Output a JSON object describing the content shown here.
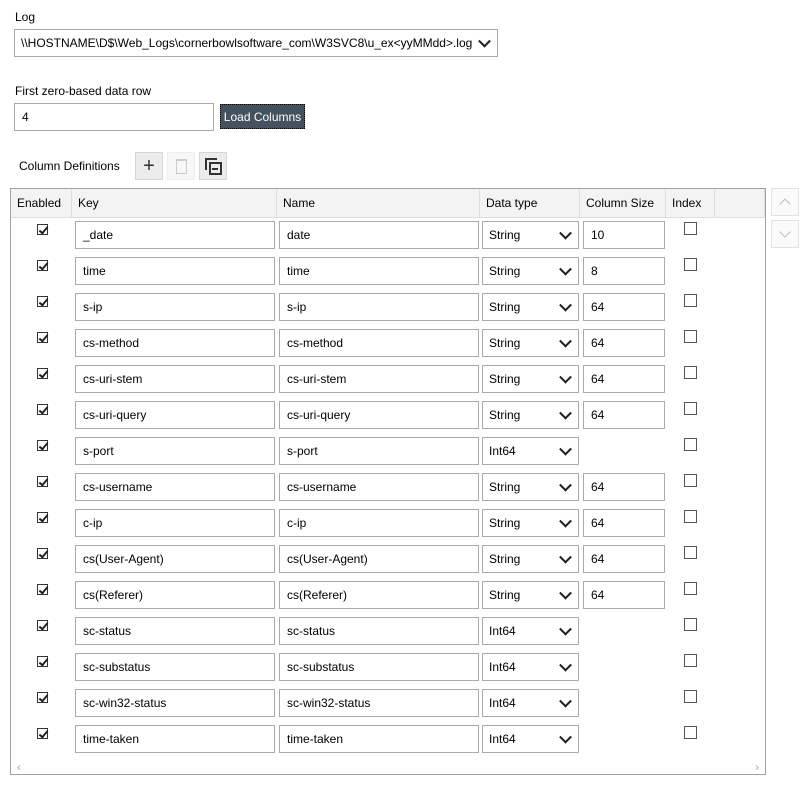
{
  "log": {
    "label": "Log",
    "value": "\\\\HOSTNAME\\D$\\Web_Logs\\cornerbowlsoftware_com\\W3SVC8\\u_ex<yyMMdd>.log"
  },
  "first_row": {
    "label": "First zero-based data row",
    "value": "4",
    "load_button": "Load Columns"
  },
  "column_definitions": {
    "label": "Column Definitions",
    "toolbar_icons": [
      "plus-icon",
      "trash-icon",
      "copy-icon"
    ]
  },
  "grid": {
    "headers": [
      "Enabled",
      "Key",
      "Name",
      "Data type",
      "Column Size",
      "Index"
    ],
    "rows": [
      {
        "enabled": true,
        "key": "_date",
        "name": "date",
        "type": "String",
        "size": "10",
        "index": false
      },
      {
        "enabled": true,
        "key": "time",
        "name": "time",
        "type": "String",
        "size": "8",
        "index": false
      },
      {
        "enabled": true,
        "key": "s-ip",
        "name": "s-ip",
        "type": "String",
        "size": "64",
        "index": false
      },
      {
        "enabled": true,
        "key": "cs-method",
        "name": "cs-method",
        "type": "String",
        "size": "64",
        "index": false
      },
      {
        "enabled": true,
        "key": "cs-uri-stem",
        "name": "cs-uri-stem",
        "type": "String",
        "size": "64",
        "index": false
      },
      {
        "enabled": true,
        "key": "cs-uri-query",
        "name": "cs-uri-query",
        "type": "String",
        "size": "64",
        "index": false
      },
      {
        "enabled": true,
        "key": "s-port",
        "name": "s-port",
        "type": "Int64",
        "size": null,
        "index": false
      },
      {
        "enabled": true,
        "key": "cs-username",
        "name": "cs-username",
        "type": "String",
        "size": "64",
        "index": false
      },
      {
        "enabled": true,
        "key": "c-ip",
        "name": "c-ip",
        "type": "String",
        "size": "64",
        "index": false
      },
      {
        "enabled": true,
        "key": "cs(User-Agent)",
        "name": "cs(User-Agent)",
        "type": "String",
        "size": "64",
        "index": false
      },
      {
        "enabled": true,
        "key": "cs(Referer)",
        "name": "cs(Referer)",
        "type": "String",
        "size": "64",
        "index": false
      },
      {
        "enabled": true,
        "key": "sc-status",
        "name": "sc-status",
        "type": "Int64",
        "size": null,
        "index": false
      },
      {
        "enabled": true,
        "key": "sc-substatus",
        "name": "sc-substatus",
        "type": "Int64",
        "size": null,
        "index": false
      },
      {
        "enabled": true,
        "key": "sc-win32-status",
        "name": "sc-win32-status",
        "type": "Int64",
        "size": null,
        "index": false
      },
      {
        "enabled": true,
        "key": "time-taken",
        "name": "time-taken",
        "type": "Int64",
        "size": null,
        "index": false
      }
    ]
  },
  "colors": {
    "load_button_bg": "#44525e",
    "border": "#aaaaaa"
  }
}
